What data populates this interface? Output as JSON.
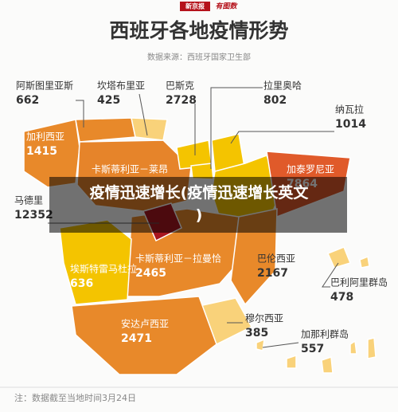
{
  "header": {
    "logo": [
      "新京报",
      "有图数"
    ],
    "title": "西班牙各地疫情形势",
    "source": "数据来源：西班牙国家卫生部"
  },
  "regions": [
    {
      "name": "阿斯图里亚斯",
      "cases": 662
    },
    {
      "name": "坎塔布里亚",
      "cases": 425
    },
    {
      "name": "巴斯克",
      "cases": 2728
    },
    {
      "name": "拉里奥哈",
      "cases": 802
    },
    {
      "name": "纳瓦拉",
      "cases": 1014
    },
    {
      "name": "加利西亚",
      "cases": 1415
    },
    {
      "name": "卡斯蒂利亚－莱昂"
    },
    {
      "name": "加泰罗尼亚",
      "cases": 7864
    },
    {
      "name": "马德里",
      "cases": 12352
    },
    {
      "name": "埃斯特雷马杜拉",
      "cases": 636
    },
    {
      "name": "卡斯蒂利亚－拉曼恰",
      "cases": 2465
    },
    {
      "name": "巴伦西亚",
      "cases": 2167
    },
    {
      "name": "巴利阿里群岛",
      "cases": 478
    },
    {
      "name": "穆尔西亚",
      "cases": 385
    },
    {
      "name": "安达卢西亚",
      "cases": 2471
    },
    {
      "name": "加那利群岛",
      "cases": 557
    }
  ],
  "overlay": "疫情迅速增长(疫情迅速增长英文)",
  "footer": "注：数据截至当地时间3月24日"
}
